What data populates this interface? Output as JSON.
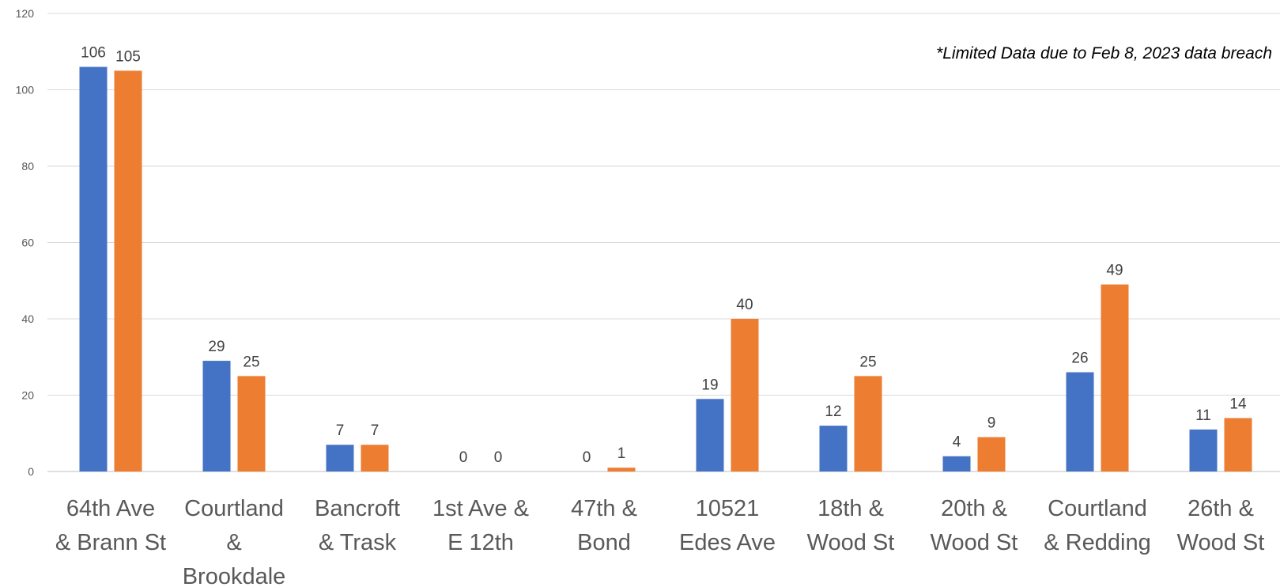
{
  "note": "*Limited Data due to Feb 8, 2023 data breach",
  "chart_data": {
    "type": "bar",
    "categories": [
      [
        "64th Ave",
        "& Brann St"
      ],
      [
        "Courtland",
        "&",
        "Brookdale"
      ],
      [
        "Bancroft",
        "& Trask"
      ],
      [
        "1st Ave &",
        "E 12th"
      ],
      [
        "47th &",
        "Bond"
      ],
      [
        "10521",
        "Edes Ave"
      ],
      [
        "18th &",
        "Wood St"
      ],
      [
        "20th &",
        "Wood St"
      ],
      [
        "Courtland",
        "& Redding"
      ],
      [
        "26th &",
        "Wood St"
      ]
    ],
    "series": [
      {
        "values": [
          106,
          29,
          7,
          0,
          0,
          19,
          12,
          4,
          26,
          11
        ],
        "color": "#4472C4"
      },
      {
        "values": [
          105,
          25,
          7,
          0,
          1,
          40,
          25,
          9,
          49,
          14
        ],
        "color": "#ED7D31"
      }
    ],
    "ylim": [
      0,
      120
    ],
    "yticks": [
      0,
      20,
      40,
      60,
      80,
      100,
      120
    ],
    "grid": true,
    "legend": "none"
  }
}
